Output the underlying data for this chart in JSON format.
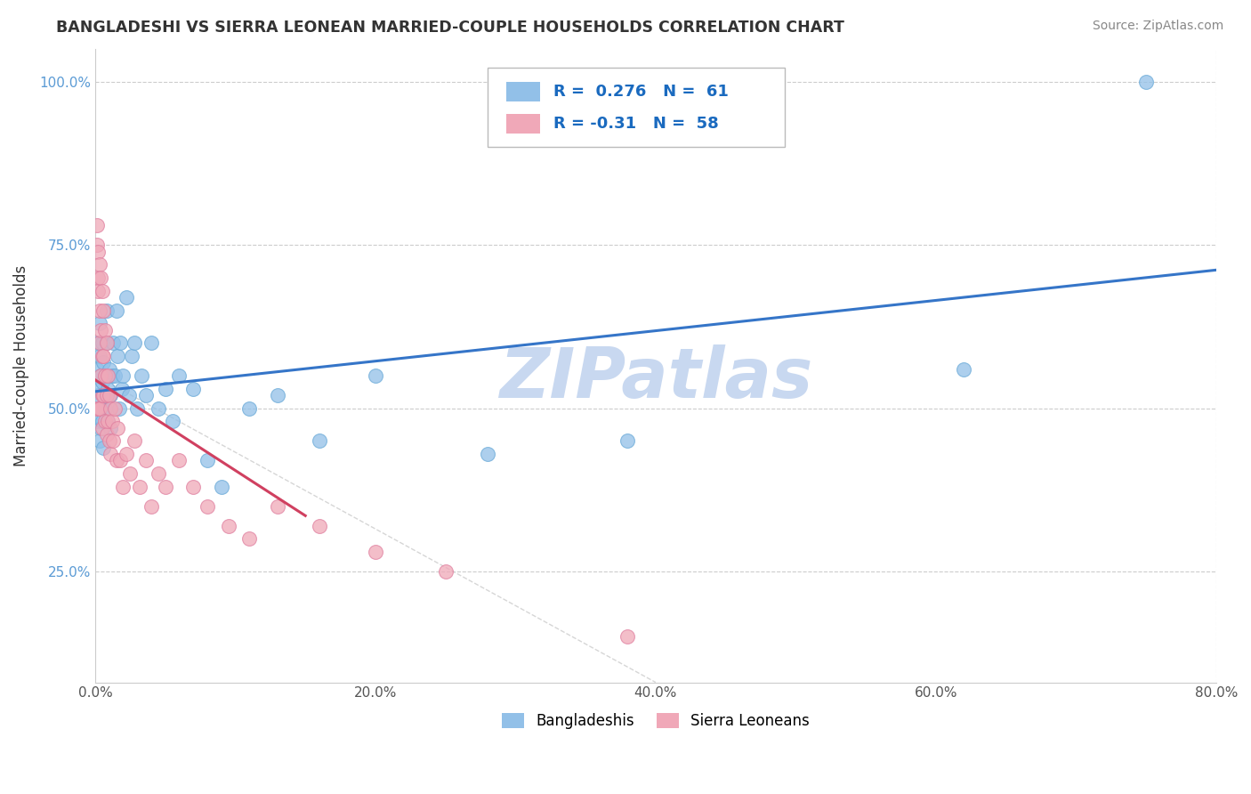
{
  "title": "BANGLADESHI VS SIERRA LEONEAN MARRIED-COUPLE HOUSEHOLDS CORRELATION CHART",
  "source": "Source: ZipAtlas.com",
  "ylabel": "Married-couple Households",
  "blue_color": "#92C0E8",
  "pink_color": "#F0A8B8",
  "blue_edge_color": "#6aaad8",
  "pink_edge_color": "#e080a0",
  "blue_line_color": "#3575C8",
  "pink_line_color": "#D04060",
  "dashed_line_color": "#CCCCCC",
  "watermark": "ZIPatlas",
  "watermark_color": "#C8D8F0",
  "R_blue": 0.276,
  "N_blue": 61,
  "R_pink": -0.31,
  "N_pink": 58,
  "blue_x": [
    0.001,
    0.001,
    0.002,
    0.002,
    0.002,
    0.003,
    0.003,
    0.003,
    0.003,
    0.004,
    0.004,
    0.004,
    0.005,
    0.005,
    0.005,
    0.006,
    0.006,
    0.006,
    0.007,
    0.007,
    0.008,
    0.008,
    0.008,
    0.009,
    0.009,
    0.01,
    0.01,
    0.011,
    0.011,
    0.012,
    0.013,
    0.014,
    0.015,
    0.016,
    0.017,
    0.018,
    0.019,
    0.02,
    0.022,
    0.024,
    0.026,
    0.028,
    0.03,
    0.033,
    0.036,
    0.04,
    0.045,
    0.05,
    0.055,
    0.06,
    0.07,
    0.08,
    0.09,
    0.11,
    0.13,
    0.16,
    0.2,
    0.28,
    0.38,
    0.62,
    0.75
  ],
  "blue_y": [
    0.5,
    0.56,
    0.48,
    0.52,
    0.6,
    0.45,
    0.53,
    0.58,
    0.63,
    0.5,
    0.55,
    0.47,
    0.48,
    0.54,
    0.6,
    0.52,
    0.57,
    0.44,
    0.5,
    0.55,
    0.52,
    0.6,
    0.65,
    0.53,
    0.48,
    0.56,
    0.5,
    0.52,
    0.47,
    0.55,
    0.6,
    0.55,
    0.65,
    0.58,
    0.5,
    0.6,
    0.53,
    0.55,
    0.67,
    0.52,
    0.58,
    0.6,
    0.5,
    0.55,
    0.52,
    0.6,
    0.5,
    0.53,
    0.48,
    0.55,
    0.53,
    0.42,
    0.38,
    0.5,
    0.52,
    0.45,
    0.55,
    0.43,
    0.45,
    0.56,
    1.0
  ],
  "pink_x": [
    0.001,
    0.001,
    0.001,
    0.002,
    0.002,
    0.002,
    0.002,
    0.003,
    0.003,
    0.003,
    0.003,
    0.004,
    0.004,
    0.004,
    0.005,
    0.005,
    0.005,
    0.005,
    0.006,
    0.006,
    0.006,
    0.007,
    0.007,
    0.007,
    0.008,
    0.008,
    0.008,
    0.009,
    0.009,
    0.01,
    0.01,
    0.011,
    0.011,
    0.012,
    0.013,
    0.014,
    0.015,
    0.016,
    0.018,
    0.02,
    0.022,
    0.025,
    0.028,
    0.032,
    0.036,
    0.04,
    0.045,
    0.05,
    0.06,
    0.07,
    0.08,
    0.095,
    0.11,
    0.13,
    0.16,
    0.2,
    0.25,
    0.38
  ],
  "pink_y": [
    0.78,
    0.75,
    0.5,
    0.74,
    0.7,
    0.68,
    0.5,
    0.72,
    0.65,
    0.6,
    0.5,
    0.7,
    0.62,
    0.55,
    0.68,
    0.58,
    0.52,
    0.47,
    0.65,
    0.58,
    0.52,
    0.62,
    0.55,
    0.48,
    0.6,
    0.52,
    0.46,
    0.55,
    0.48,
    0.52,
    0.45,
    0.5,
    0.43,
    0.48,
    0.45,
    0.5,
    0.42,
    0.47,
    0.42,
    0.38,
    0.43,
    0.4,
    0.45,
    0.38,
    0.42,
    0.35,
    0.4,
    0.38,
    0.42,
    0.38,
    0.35,
    0.32,
    0.3,
    0.35,
    0.32,
    0.28,
    0.25,
    0.15
  ],
  "xlim": [
    0.0,
    0.8
  ],
  "ylim": [
    0.08,
    1.05
  ],
  "yticks": [
    0.25,
    0.5,
    0.75,
    1.0
  ],
  "xticks": [
    0.0,
    0.2,
    0.4,
    0.6,
    0.8
  ],
  "background_color": "#FFFFFF"
}
